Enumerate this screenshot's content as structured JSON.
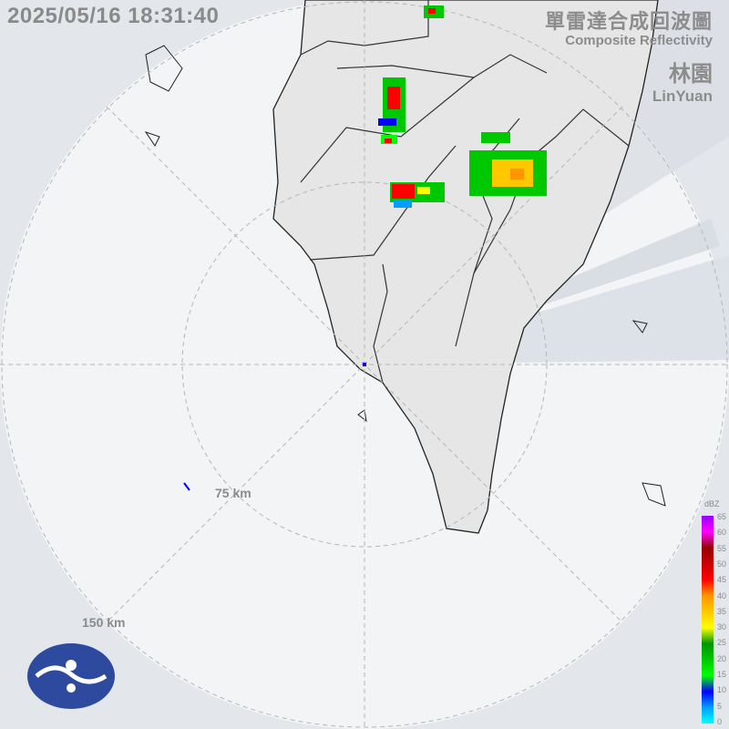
{
  "timestamp": "2025/05/16 18:31:40",
  "title": {
    "zh": "單雷達合成回波圖",
    "en": "Composite Reflectivity"
  },
  "station": {
    "zh": "林園",
    "en": "LinYuan"
  },
  "rings": [
    {
      "label": "75 km"
    },
    {
      "label": "150 km"
    }
  ],
  "legend": {
    "unit": "dBZ",
    "ticks": [
      "65",
      "60",
      "55",
      "50",
      "45",
      "40",
      "35",
      "30",
      "25",
      "20",
      "15",
      "10",
      "5",
      "0"
    ],
    "colors": [
      "#00ffff",
      "#00a0ff",
      "#0000ff",
      "#00ff00",
      "#00c800",
      "#009600",
      "#ffff00",
      "#ffc800",
      "#ff9600",
      "#ff0000",
      "#c80000",
      "#960000",
      "#ff00ff",
      "#9600ff"
    ]
  },
  "colors": {
    "sea": "#e3e7ec",
    "land": "#e6e6e6",
    "blockage": "#d3d9e0"
  }
}
